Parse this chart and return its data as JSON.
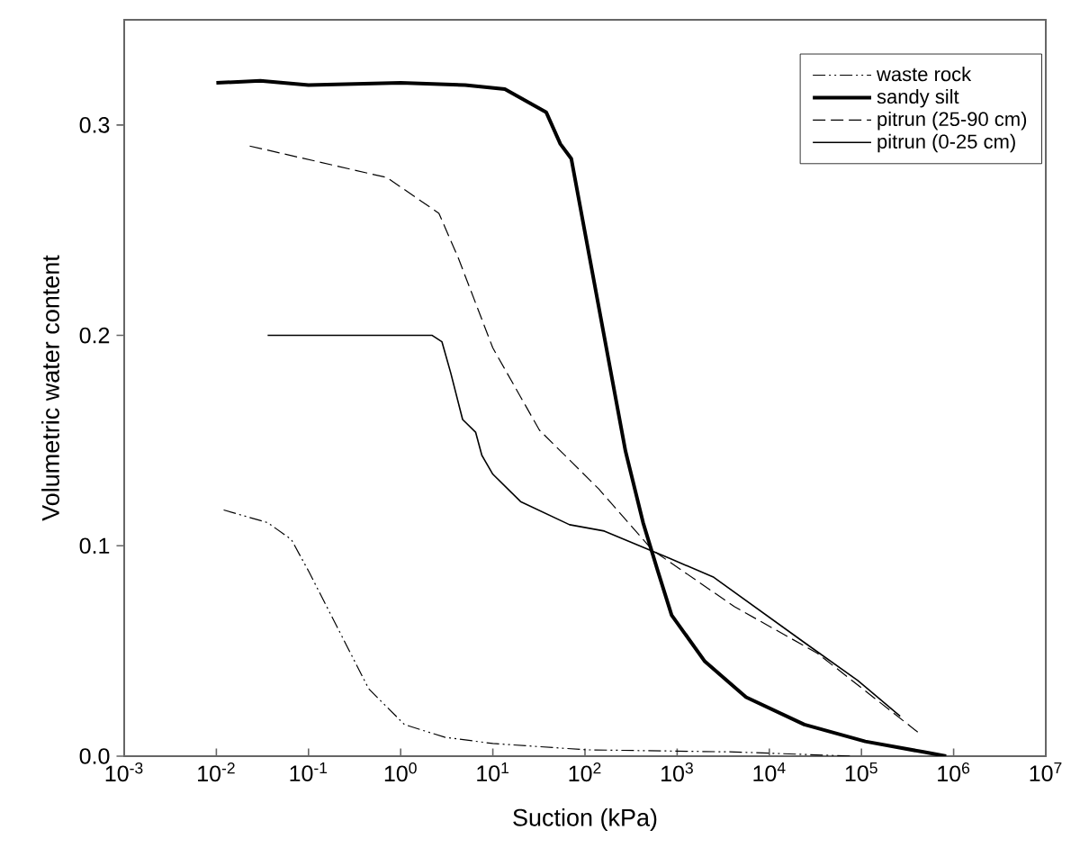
{
  "chart_data": {
    "type": "line",
    "xlabel": "Suction (kPa)",
    "ylabel": "Volumetric water content",
    "log": "x",
    "xlim": [
      0.001,
      10000000
    ],
    "ylim": [
      0,
      0.35
    ],
    "xticks": [
      {
        "value": 0.001,
        "label": "10$^{-3}$"
      },
      {
        "value": 0.01,
        "label": "10$^{-2}$"
      },
      {
        "value": 0.1,
        "label": "10$^{-1}$"
      },
      {
        "value": 1,
        "label": "10$^{0}$"
      },
      {
        "value": 10,
        "label": "10$^{1}$"
      },
      {
        "value": 100,
        "label": "10$^{2}$"
      },
      {
        "value": 1000,
        "label": "10$^{3}$"
      },
      {
        "value": 10000,
        "label": "10$^{4}$"
      },
      {
        "value": 100000,
        "label": "10$^{5}$"
      },
      {
        "value": 1000000,
        "label": "10$^{6}$"
      },
      {
        "value": 10000000,
        "label": "10$^{7}$"
      }
    ],
    "yticks": [
      {
        "value": 0,
        "label": "0.0"
      },
      0.1,
      0.2,
      0.3
    ],
    "grid": false,
    "legend": "top right",
    "marker": "none",
    "series": [
      {
        "name": "waste rock",
        "color": "#000000",
        "line_style": "dashdotdotted",
        "x": [
          0.012,
          0.036,
          0.065,
          0.1,
          0.23,
          0.45,
          1.1,
          3,
          10,
          105,
          4200,
          79000
        ],
        "values": [
          0.117,
          0.111,
          0.103,
          0.088,
          0.057,
          0.032,
          0.015,
          0.009,
          0.006,
          0.003,
          0.002,
          0.0
        ]
      },
      {
        "name": "sandy silt",
        "color": "#000000",
        "line_style": "solid",
        "x": [
          0.01,
          0.03,
          0.1,
          1,
          5,
          13.5,
          38,
          54,
          71,
          275,
          427,
          617,
          871,
          2000,
          5600,
          24000,
          110000,
          470000,
          830000
        ],
        "values": [
          0.32,
          0.321,
          0.319,
          0.32,
          0.319,
          0.317,
          0.306,
          0.291,
          0.284,
          0.145,
          0.111,
          0.088,
          0.067,
          0.045,
          0.028,
          0.015,
          0.007,
          0.002,
          0.0
        ]
      },
      {
        "name": "pitrun (25-90 cm)",
        "color": "#000000",
        "line_style": "dashed",
        "x": [
          0.023,
          0.71,
          2.6,
          4.2,
          10,
          32,
          141,
          537,
          4200,
          33000,
          420000
        ],
        "values": [
          0.29,
          0.275,
          0.258,
          0.237,
          0.194,
          0.155,
          0.127,
          0.098,
          0.071,
          0.049,
          0.011
        ]
      },
      {
        "name": "pitrun (0-25 cm)",
        "color": "#000000",
        "line_style": "solid",
        "x": [
          0.036,
          2.2,
          2.8,
          3.5,
          4.7,
          6.5,
          7.6,
          10,
          20,
          68,
          162,
          830,
          2500,
          24000,
          91000,
          263000
        ],
        "values": [
          0.2,
          0.2,
          0.197,
          0.182,
          0.16,
          0.154,
          0.143,
          0.134,
          0.121,
          0.11,
          0.107,
          0.094,
          0.085,
          0.054,
          0.036,
          0.019
        ]
      }
    ]
  }
}
